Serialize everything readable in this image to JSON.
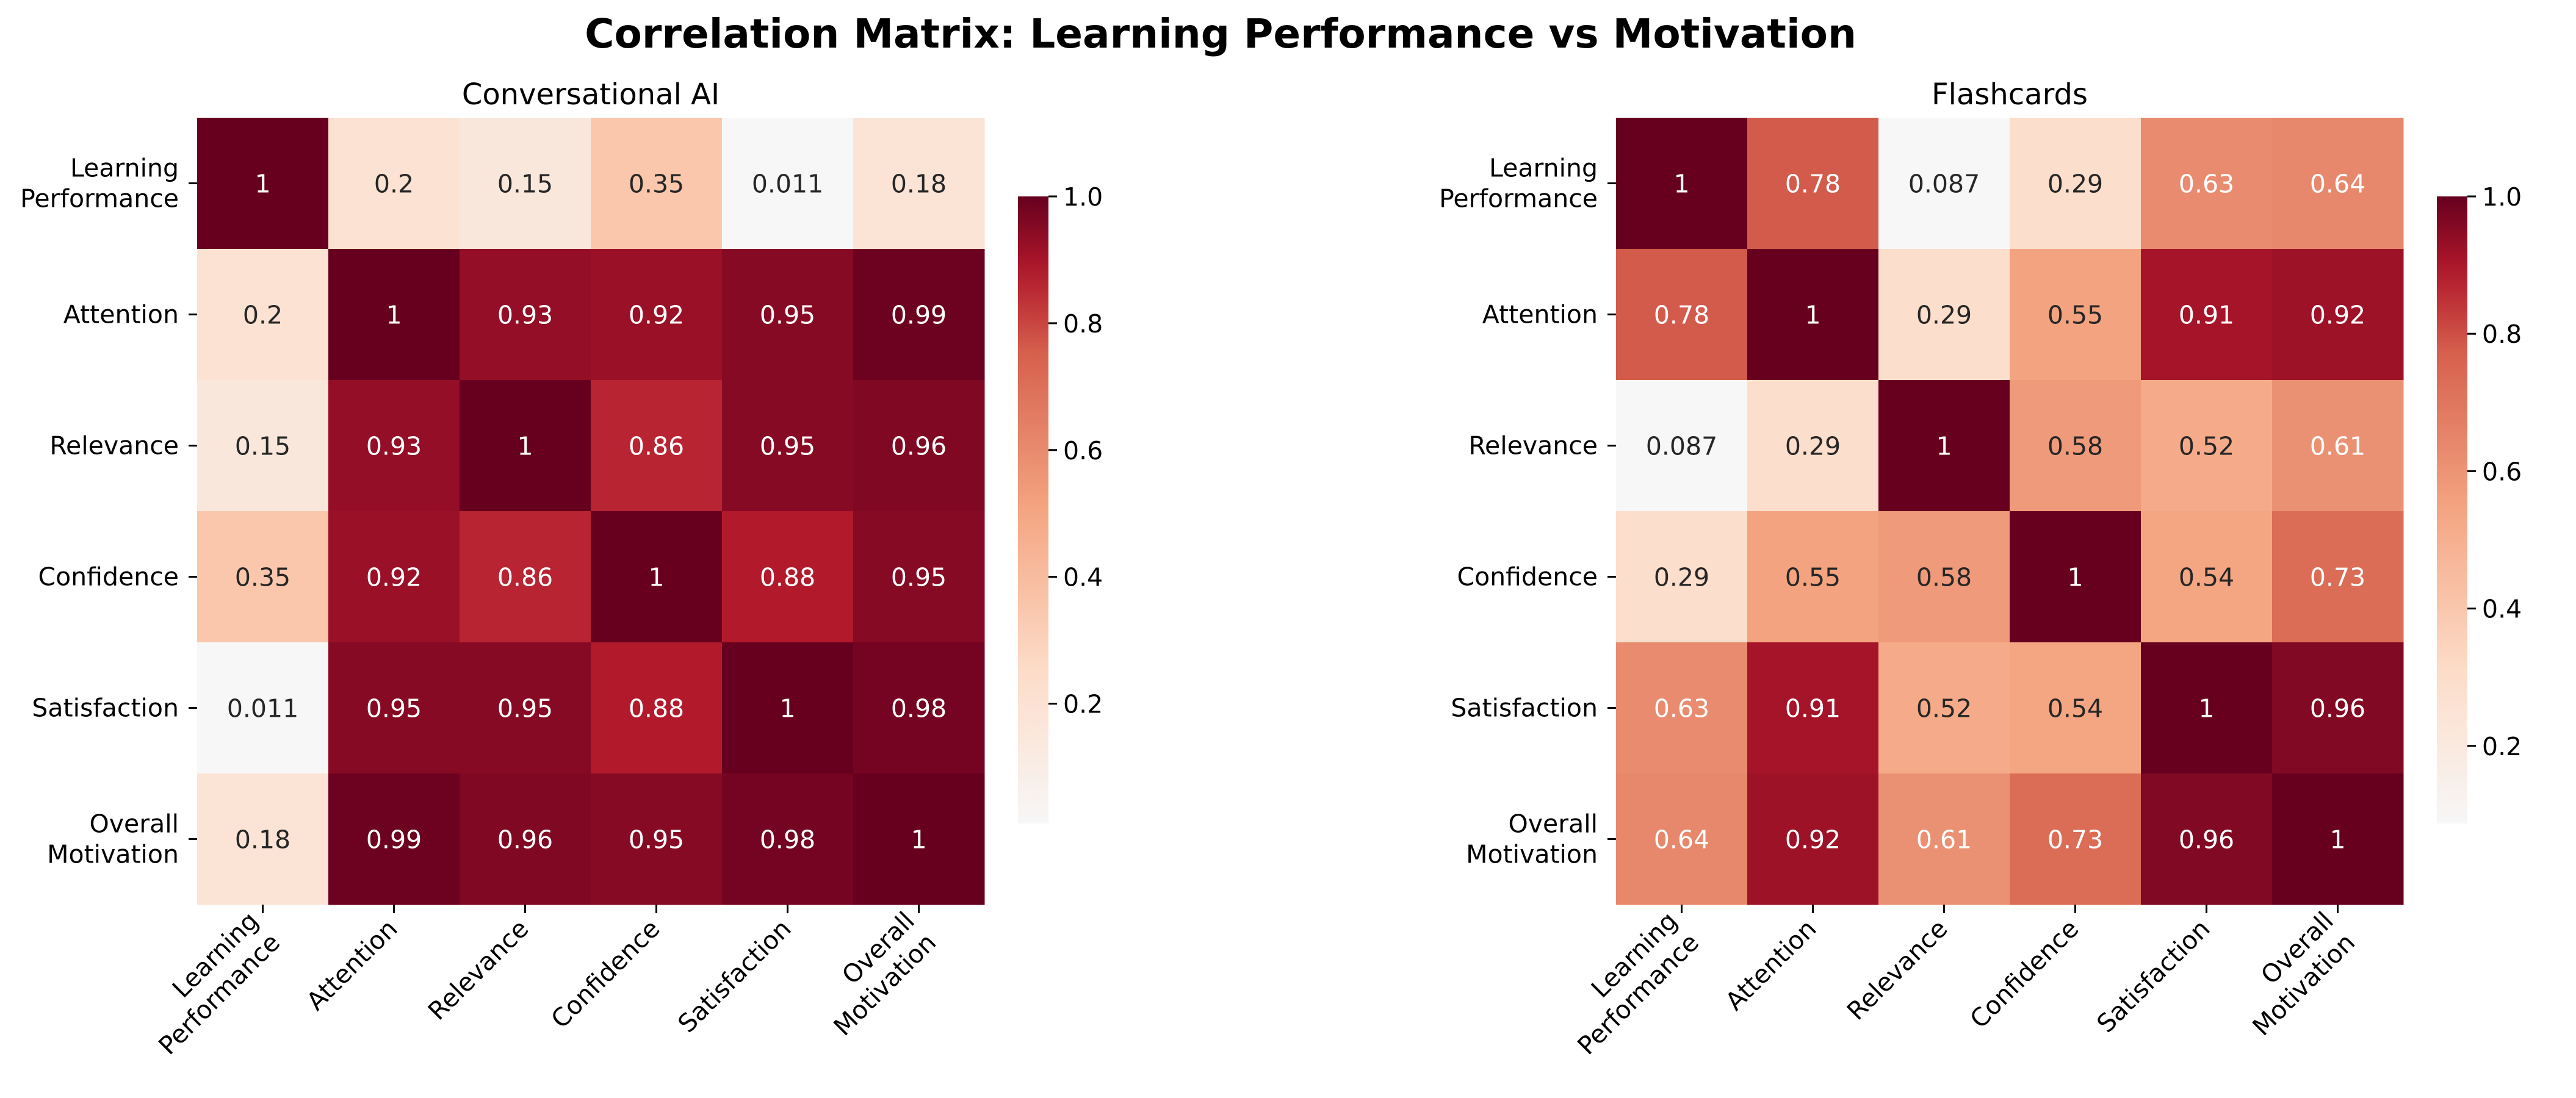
{
  "figure": {
    "title": "Correlation Matrix: Learning Performance vs Motivation"
  },
  "chart_data": [
    {
      "type": "heatmap",
      "title": "Conversational AI",
      "row_labels": [
        [
          "Learning",
          "Performance"
        ],
        [
          "Attention"
        ],
        [
          "Relevance"
        ],
        [
          "Confidence"
        ],
        [
          "Satisfaction"
        ],
        [
          "Overall",
          "Motivation"
        ]
      ],
      "col_labels": [
        [
          "Learning",
          "Performance"
        ],
        [
          "Attention"
        ],
        [
          "Relevance"
        ],
        [
          "Confidence"
        ],
        [
          "Satisfaction"
        ],
        [
          "Overall",
          "Motivation"
        ]
      ],
      "values": [
        [
          1,
          0.2,
          0.15,
          0.35,
          0.011,
          0.18
        ],
        [
          0.2,
          1,
          0.93,
          0.92,
          0.95,
          0.99
        ],
        [
          0.15,
          0.93,
          1,
          0.86,
          0.95,
          0.96
        ],
        [
          0.35,
          0.92,
          0.86,
          1,
          0.88,
          0.95
        ],
        [
          0.011,
          0.95,
          0.95,
          0.88,
          1,
          0.98
        ],
        [
          0.18,
          0.99,
          0.96,
          0.95,
          0.98,
          1
        ]
      ],
      "value_labels": [
        [
          "1",
          "0.2",
          "0.15",
          "0.35",
          "0.011",
          "0.18"
        ],
        [
          "0.2",
          "1",
          "0.93",
          "0.92",
          "0.95",
          "0.99"
        ],
        [
          "0.15",
          "0.93",
          "1",
          "0.86",
          "0.95",
          "0.96"
        ],
        [
          "0.35",
          "0.92",
          "0.86",
          "1",
          "0.88",
          "0.95"
        ],
        [
          "0.011",
          "0.95",
          "0.95",
          "0.88",
          "1",
          "0.98"
        ],
        [
          "0.18",
          "0.99",
          "0.96",
          "0.95",
          "0.98",
          "1"
        ]
      ],
      "colorbar": {
        "colormap": "RdBu_r",
        "vmin": 0.011,
        "vmax": 1,
        "ticks": [
          0.2,
          0.4,
          0.6,
          0.8,
          1.0
        ],
        "tick_labels": [
          "0.2",
          "0.4",
          "0.6",
          "0.8",
          "1.0"
        ]
      },
      "grid": false
    },
    {
      "type": "heatmap",
      "title": "Flashcards",
      "row_labels": [
        [
          "Learning",
          "Performance"
        ],
        [
          "Attention"
        ],
        [
          "Relevance"
        ],
        [
          "Confidence"
        ],
        [
          "Satisfaction"
        ],
        [
          "Overall",
          "Motivation"
        ]
      ],
      "col_labels": [
        [
          "Learning",
          "Performance"
        ],
        [
          "Attention"
        ],
        [
          "Relevance"
        ],
        [
          "Confidence"
        ],
        [
          "Satisfaction"
        ],
        [
          "Overall",
          "Motivation"
        ]
      ],
      "values": [
        [
          1,
          0.78,
          0.087,
          0.29,
          0.63,
          0.64
        ],
        [
          0.78,
          1,
          0.29,
          0.55,
          0.91,
          0.92
        ],
        [
          0.087,
          0.29,
          1,
          0.58,
          0.52,
          0.61
        ],
        [
          0.29,
          0.55,
          0.58,
          1,
          0.54,
          0.73
        ],
        [
          0.63,
          0.91,
          0.52,
          0.54,
          1,
          0.96
        ],
        [
          0.64,
          0.92,
          0.61,
          0.73,
          0.96,
          1
        ]
      ],
      "value_labels": [
        [
          "1",
          "0.78",
          "0.087",
          "0.29",
          "0.63",
          "0.64"
        ],
        [
          "0.78",
          "1",
          "0.29",
          "0.55",
          "0.91",
          "0.92"
        ],
        [
          "0.087",
          "0.29",
          "1",
          "0.58",
          "0.52",
          "0.61"
        ],
        [
          "0.29",
          "0.55",
          "0.58",
          "1",
          "0.54",
          "0.73"
        ],
        [
          "0.63",
          "0.91",
          "0.52",
          "0.54",
          "1",
          "0.96"
        ],
        [
          "0.64",
          "0.92",
          "0.61",
          "0.73",
          "0.96",
          "1"
        ]
      ],
      "colorbar": {
        "colormap": "RdBu_r",
        "vmin": 0.087,
        "vmax": 1,
        "ticks": [
          0.2,
          0.4,
          0.6,
          0.8,
          1.0
        ],
        "tick_labels": [
          "0.2",
          "0.4",
          "0.6",
          "0.8",
          "1.0"
        ]
      },
      "grid": false
    }
  ]
}
